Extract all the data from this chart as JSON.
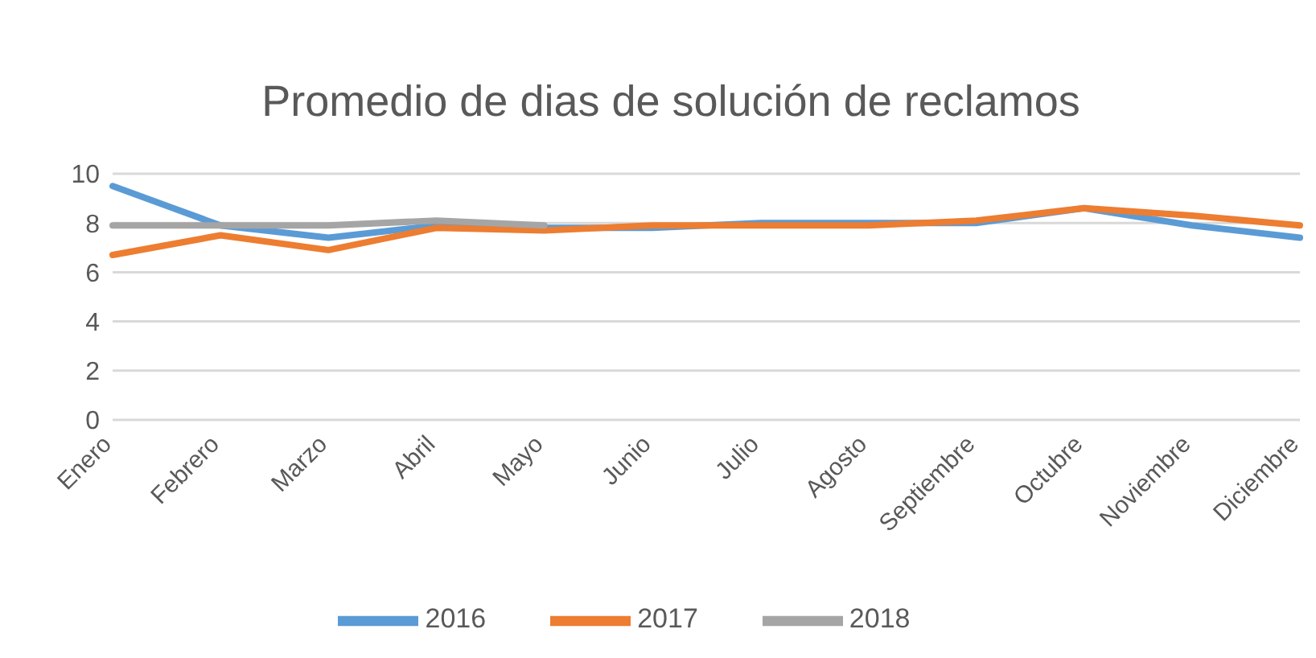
{
  "chart_data": {
    "type": "line",
    "title": "Promedio de dias de solución de reclamos",
    "categories": [
      "Enero",
      "Febrero",
      "Marzo",
      "Abril",
      "Mayo",
      "Junio",
      "Julio",
      "Agosto",
      "Septiembre",
      "Octubre",
      "Noviembre",
      "Diciembre"
    ],
    "series": [
      {
        "name": "2016",
        "color": "#5b9bd5",
        "values": [
          9.5,
          7.9,
          7.4,
          7.9,
          7.8,
          7.8,
          8.0,
          8.0,
          8.0,
          8.6,
          7.9,
          7.4
        ]
      },
      {
        "name": "2017",
        "color": "#ed7d31",
        "values": [
          6.7,
          7.5,
          6.9,
          7.8,
          7.7,
          7.9,
          7.9,
          7.9,
          8.1,
          8.6,
          8.3,
          7.9
        ]
      },
      {
        "name": "2018",
        "color": "#a5a5a5",
        "values": [
          7.9,
          7.9,
          7.9,
          8.1,
          7.9,
          null,
          null,
          null,
          null,
          null,
          null,
          null
        ]
      }
    ],
    "ylim": [
      0,
      10
    ],
    "yticks": [
      0,
      2,
      4,
      6,
      8,
      10
    ],
    "grid": "y",
    "legend": "bottom",
    "marker": "none",
    "line_style": "solid"
  }
}
